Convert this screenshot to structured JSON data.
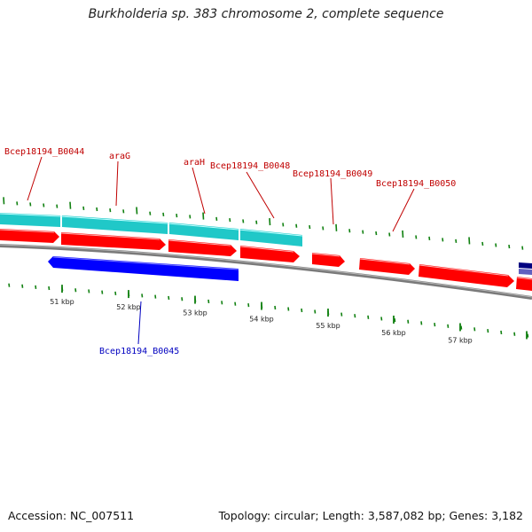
{
  "title": "Burkholderia sp. 383 chromosome 2, complete sequence",
  "footer": {
    "accession": "Accession: NC_007511",
    "summary": "Topology: circular; Length: 3,587,082 bp; Genes: 3,182"
  },
  "colors": {
    "cds": "#ff0000",
    "gene": "#20c8c8",
    "reverse": "#0000ff",
    "other": "#000080",
    "backbone": "#808080",
    "ticks": "#108010",
    "label_top": "#c00000",
    "label_bottom": "#0000c0"
  },
  "genes_top": [
    {
      "name": "Bcep18194_B0044"
    },
    {
      "name": "araG"
    },
    {
      "name": "araH"
    },
    {
      "name": "Bcep18194_B0048"
    },
    {
      "name": "Bcep18194_B0049"
    },
    {
      "name": "Bcep18194_B0050"
    }
  ],
  "genes_bottom": [
    {
      "name": "Bcep18194_B0045"
    }
  ],
  "scale": {
    "ticks": [
      "51 kbp",
      "52 kbp",
      "53 kbp",
      "54 kbp",
      "55 kbp",
      "56 kbp",
      "57 kbp"
    ]
  }
}
